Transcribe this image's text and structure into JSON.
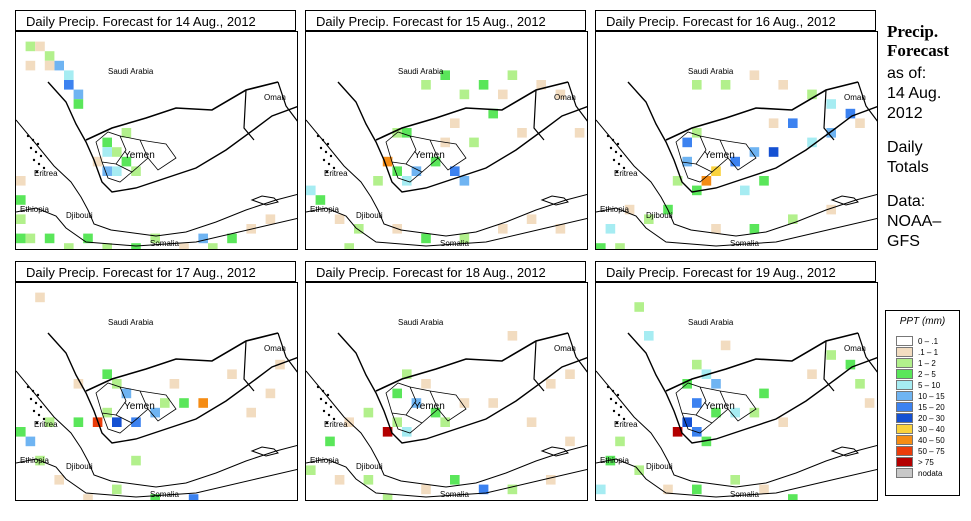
{
  "panels": [
    {
      "title": "Daily Precip. Forecast for  14 Aug., 2012"
    },
    {
      "title": "Daily Precip. Forecast for  15 Aug., 2012"
    },
    {
      "title": "Daily Precip. Forecast for  16 Aug., 2012"
    },
    {
      "title": "Daily Precip. Forecast for  17 Aug., 2012"
    },
    {
      "title": "Daily Precip. Forecast for  18 Aug., 2012"
    },
    {
      "title": "Daily Precip. Forecast for  19 Aug., 2012"
    }
  ],
  "map_labels": {
    "saudi": "Saudi Arabia",
    "oman": "Oman",
    "yemen": "Yemen",
    "eritrea": "Eritrea",
    "ethiopia": "Ethiopia",
    "djibouti": "Djibouti",
    "somalia": "Somalia"
  },
  "side": {
    "title_line1": "Precip.",
    "title_line2": "Forecast",
    "asof": "as of:",
    "date1": "14 Aug.",
    "date2": "2012",
    "daily1": "Daily",
    "daily2": "Totals",
    "data1": "Data:",
    "data2": "NOAA–",
    "data3": "GFS"
  },
  "legend": {
    "title": "PPT (mm)",
    "items": [
      {
        "label": "0 – .1",
        "color": "#ffffff"
      },
      {
        "label": ".1 – 1",
        "color": "#f2dcc0"
      },
      {
        "label": "1 – 2",
        "color": "#b2f08c"
      },
      {
        "label": "2 – 5",
        "color": "#5ae65a"
      },
      {
        "label": "5 – 10",
        "color": "#a6ecf2"
      },
      {
        "label": "10 – 15",
        "color": "#6fb4f2"
      },
      {
        "label": "15 – 20",
        "color": "#3c82f0"
      },
      {
        "label": "20 – 30",
        "color": "#1450d2"
      },
      {
        "label": "30 – 40",
        "color": "#fad23c"
      },
      {
        "label": "40 – 50",
        "color": "#f58c14"
      },
      {
        "label": "50 – 75",
        "color": "#eb3c0a"
      },
      {
        "label": "> 75",
        "color": "#b40000"
      },
      {
        "label": "nodata",
        "color": "#c8c8c8"
      }
    ]
  }
}
